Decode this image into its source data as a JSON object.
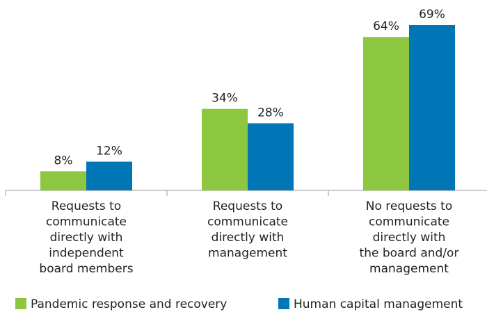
{
  "chart_data": {
    "type": "bar",
    "categories": [
      "Requests to\ncommunicate\ndirectly with\nindependent\nboard members",
      "Requests to\ncommunicate\ndirectly with\nmanagement",
      "No requests to\ncommunicate\ndirectly with\nthe board and/or\nmanagement"
    ],
    "series": [
      {
        "name": "Pandemic response and recovery",
        "color": "#8dc63f",
        "values": [
          8,
          34,
          64
        ],
        "value_labels": [
          "8%",
          "34%",
          "64%"
        ]
      },
      {
        "name": "Human capital management",
        "color": "#0076b6",
        "values": [
          12,
          28,
          69
        ],
        "value_labels": [
          "12%",
          "28%",
          "69%"
        ]
      }
    ],
    "legend": "bottom"
  }
}
